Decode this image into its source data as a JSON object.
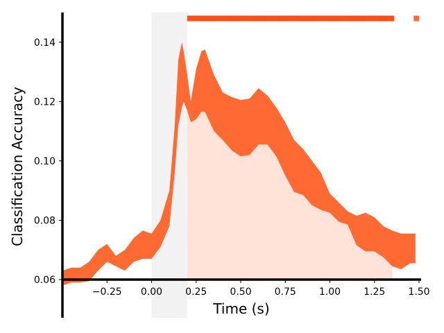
{
  "chart_data": {
    "type": "area",
    "title": "",
    "xlabel": "Time (s)",
    "ylabel": "Classification Accuracy",
    "xlim": [
      -0.5,
      1.5
    ],
    "ylim": [
      0.06,
      0.15
    ],
    "x_ticks": [
      -0.25,
      0.0,
      0.25,
      0.5,
      0.75,
      1.0,
      1.25,
      1.5
    ],
    "x_tick_labels": [
      "−0.25",
      "0.00",
      "0.25",
      "0.50",
      "0.75",
      "1.00",
      "1.25",
      "1.50"
    ],
    "y_ticks": [
      0.06,
      0.08,
      0.1,
      0.12,
      0.14
    ],
    "y_tick_labels": [
      "0.06",
      "0.08",
      "0.10",
      "0.12",
      "0.14"
    ],
    "grid": false,
    "shaded_window": [
      0.0,
      0.2
    ],
    "band": {
      "x": [
        -0.5,
        -0.45,
        -0.4,
        -0.35,
        -0.3,
        -0.25,
        -0.2,
        -0.15,
        -0.1,
        -0.05,
        0.0,
        0.05,
        0.1,
        0.13,
        0.15,
        0.17,
        0.18,
        0.2,
        0.22,
        0.25,
        0.28,
        0.3,
        0.35,
        0.4,
        0.45,
        0.5,
        0.55,
        0.6,
        0.65,
        0.7,
        0.75,
        0.8,
        0.85,
        0.9,
        0.95,
        1.0,
        1.05,
        1.1,
        1.15,
        1.2,
        1.25,
        1.3,
        1.35,
        1.4,
        1.45,
        1.48
      ],
      "upper": [
        0.063,
        0.064,
        0.064,
        0.066,
        0.07,
        0.072,
        0.068,
        0.07,
        0.074,
        0.0765,
        0.0755,
        0.08,
        0.09,
        0.112,
        0.134,
        0.14,
        0.137,
        0.129,
        0.12,
        0.131,
        0.137,
        0.1375,
        0.129,
        0.123,
        0.1215,
        0.1205,
        0.121,
        0.1245,
        0.122,
        0.118,
        0.113,
        0.107,
        0.104,
        0.1,
        0.096,
        0.089,
        0.086,
        0.083,
        0.0815,
        0.0825,
        0.081,
        0.078,
        0.0765,
        0.0755,
        0.0755,
        0.0755
      ],
      "lower": [
        0.058,
        0.059,
        0.059,
        0.0595,
        0.063,
        0.066,
        0.0645,
        0.063,
        0.066,
        0.067,
        0.067,
        0.071,
        0.078,
        0.096,
        0.112,
        0.118,
        0.12,
        0.117,
        0.113,
        0.114,
        0.1165,
        0.1165,
        0.11,
        0.107,
        0.1035,
        0.1015,
        0.102,
        0.1055,
        0.1055,
        0.1015,
        0.095,
        0.0895,
        0.0885,
        0.085,
        0.0835,
        0.0825,
        0.0795,
        0.0785,
        0.0715,
        0.0695,
        0.0695,
        0.0675,
        0.0645,
        0.0635,
        0.0655,
        0.0655
      ]
    },
    "significance_spans": [
      [
        0.2,
        1.35
      ],
      [
        1.47,
        1.5
      ]
    ],
    "significance_y": 0.148,
    "colors": {
      "band": "#ff6a33",
      "significant_fill": "#ffe2d8",
      "window": "#f2f2f2",
      "markers": "#ff4f14",
      "marker_isolated": "#ff6a3d",
      "axis": "#000000"
    }
  }
}
